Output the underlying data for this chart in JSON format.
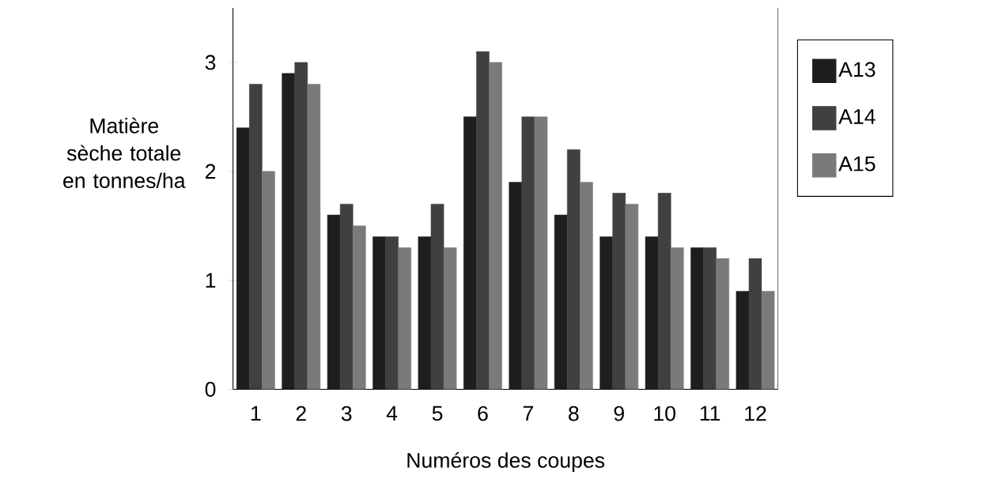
{
  "chart_data": {
    "type": "bar",
    "xlabel": "Numéros des coupes",
    "ylabel": "Matière sèche totale en tonnes/ha",
    "categories": [
      "1",
      "2",
      "3",
      "4",
      "5",
      "6",
      "7",
      "8",
      "9",
      "10",
      "11",
      "12"
    ],
    "series": [
      {
        "name": "A13",
        "color": "#1e1e1e",
        "values": [
          2.4,
          2.9,
          1.6,
          1.4,
          1.4,
          2.5,
          1.9,
          1.6,
          1.4,
          1.4,
          1.3,
          0.9
        ]
      },
      {
        "name": "A14",
        "color": "#404040",
        "values": [
          2.8,
          3.0,
          1.7,
          1.4,
          1.7,
          3.1,
          2.5,
          2.2,
          1.8,
          1.8,
          1.3,
          1.2
        ]
      },
      {
        "name": "A15",
        "color": "#7a7a7a",
        "values": [
          2.0,
          2.8,
          1.5,
          1.3,
          1.3,
          3.0,
          2.5,
          1.9,
          1.7,
          1.3,
          1.2,
          0.9
        ]
      }
    ],
    "ylim": [
      0,
      3.5
    ],
    "yticks": [
      0,
      1,
      2,
      3
    ],
    "grid": false,
    "legend": "right"
  }
}
